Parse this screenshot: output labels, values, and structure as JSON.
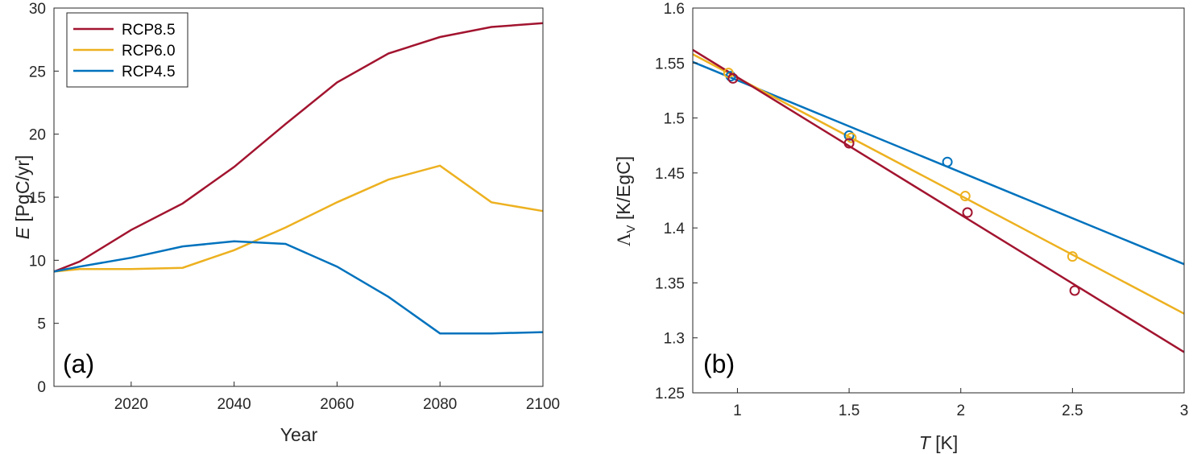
{
  "chart_data": [
    {
      "type": "line",
      "panel_label": "(a)",
      "xlabel": "Year",
      "ylabel": {
        "symbol": "E",
        "unit": " [PgC/yr]"
      },
      "xlim": [
        2005,
        2100
      ],
      "ylim": [
        0,
        30
      ],
      "xticks": [
        2020,
        2040,
        2060,
        2080,
        2100
      ],
      "yticks": [
        0,
        5,
        10,
        15,
        20,
        25,
        30
      ],
      "grid": false,
      "legend_position": "top-left",
      "x": [
        2005,
        2010,
        2020,
        2030,
        2040,
        2050,
        2060,
        2070,
        2080,
        2090,
        2100
      ],
      "series": [
        {
          "name": "RCP8.5",
          "color": "#a2142f",
          "values": [
            9.1,
            9.9,
            12.4,
            14.5,
            17.4,
            20.8,
            24.1,
            26.4,
            27.7,
            28.5,
            28.8
          ]
        },
        {
          "name": "RCP6.0",
          "color": "#edb120",
          "values": [
            9.1,
            9.3,
            9.3,
            9.4,
            10.8,
            12.6,
            14.6,
            16.4,
            17.5,
            14.6,
            13.9
          ]
        },
        {
          "name": "RCP4.5",
          "color": "#0072bd",
          "values": [
            9.1,
            9.5,
            10.2,
            11.1,
            11.5,
            11.3,
            9.5,
            7.1,
            4.2,
            4.2,
            4.3
          ]
        }
      ]
    },
    {
      "type": "scatter",
      "panel_label": "(b)",
      "xlabel": {
        "symbol": "T",
        "unit": " [K]"
      },
      "ylabel": {
        "symbol": "Λ",
        "subscript": "V",
        "unit": " [K/EgC]"
      },
      "xlim": [
        0.8,
        3
      ],
      "ylim": [
        1.25,
        1.6
      ],
      "xticks": [
        "1",
        "1.5",
        "2",
        "2.5",
        "3"
      ],
      "yticks": [
        "1.25",
        "1.3",
        "1.35",
        "1.4",
        "1.45",
        "1.5",
        "1.55",
        "1.6"
      ],
      "grid": false,
      "series": [
        {
          "color": "#0072bd",
          "points": [
            [
              0.97,
              1.538
            ],
            [
              1.5,
              1.484
            ],
            [
              1.94,
              1.46
            ]
          ],
          "fit": [
            [
              0.8,
              1.551
            ],
            [
              3.0,
              1.367
            ]
          ]
        },
        {
          "color": "#edb120",
          "points": [
            [
              0.96,
              1.541
            ],
            [
              1.51,
              1.482
            ],
            [
              2.02,
              1.429
            ],
            [
              2.5,
              1.374
            ]
          ],
          "fit": [
            [
              0.8,
              1.558
            ],
            [
              3.0,
              1.322
            ]
          ]
        },
        {
          "color": "#a2142f",
          "points": [
            [
              0.98,
              1.536
            ],
            [
              1.5,
              1.477
            ],
            [
              2.03,
              1.414
            ],
            [
              2.51,
              1.343
            ]
          ],
          "fit": [
            [
              0.8,
              1.562
            ],
            [
              3.0,
              1.287
            ]
          ]
        }
      ]
    }
  ]
}
